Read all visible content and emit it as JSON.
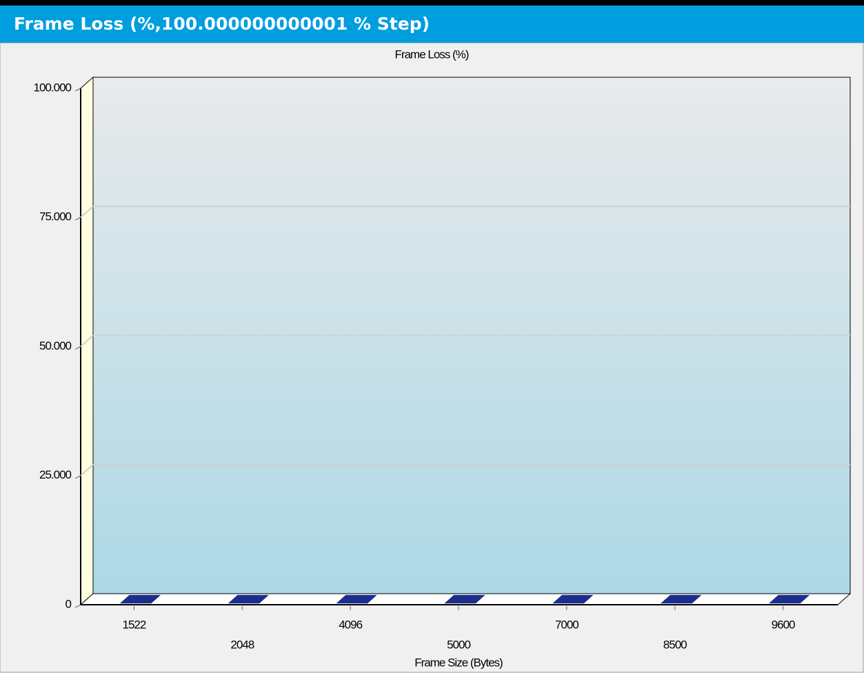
{
  "panel": {
    "title": "Frame Loss (%,100.000000000001 % Step)"
  },
  "chart_data": {
    "type": "bar",
    "title": "Frame Loss (%)",
    "x_label": "Frame Size (Bytes)",
    "categories": [
      "1522",
      "2048",
      "4096",
      "5000",
      "7000",
      "8500",
      "9600"
    ],
    "values": [
      0,
      0,
      0,
      0,
      0,
      0,
      0
    ],
    "color": "#1c2e8c",
    "ylim": [
      0,
      100
    ],
    "yticks": [
      0,
      {
        "value": 25,
        "label": "25.000"
      },
      {
        "value": 50,
        "label": "50.000"
      },
      {
        "value": 75,
        "label": "75.000"
      },
      {
        "value": 100,
        "label": "100.000"
      }
    ],
    "grid": true
  }
}
